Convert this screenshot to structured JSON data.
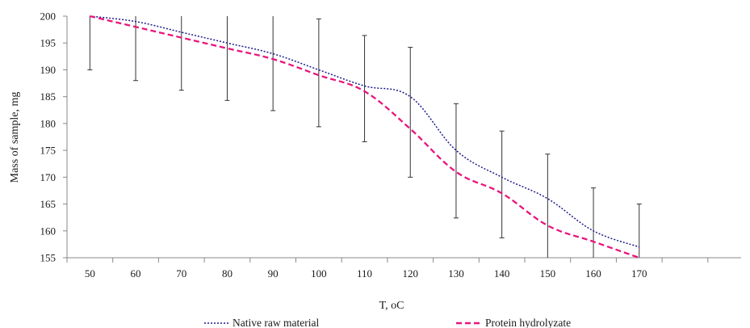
{
  "chart_data": {
    "type": "line",
    "xlabel": "T, oC",
    "ylabel": "Mass of sample, mg",
    "x": [
      50,
      60,
      70,
      80,
      90,
      100,
      110,
      120,
      130,
      140,
      150,
      160,
      170
    ],
    "x_tick_labels": [
      "50",
      "60",
      "70",
      "80",
      "90",
      "100",
      "110",
      "120",
      "130",
      "140",
      "150",
      "160",
      "170"
    ],
    "y_tick_labels": [
      "155",
      "160",
      "165",
      "170",
      "175",
      "180",
      "185",
      "190",
      "195",
      "200"
    ],
    "ylim": [
      155,
      200
    ],
    "grid": false,
    "legend_position": "bottom",
    "series": [
      {
        "name": "Native raw material",
        "color": "#1c1c8c",
        "line_style": "dotted",
        "values": [
          200,
          199,
          197,
          195,
          193,
          190,
          187,
          185,
          175,
          170,
          166,
          160,
          157
        ],
        "error": [
          10,
          11,
          10,
          10.5,
          10.5,
          9.8,
          9.6,
          9.2,
          8.6,
          8.5,
          8.3,
          7.9,
          7.8
        ]
      },
      {
        "name": "Protein hydrolyzate",
        "color": "#e8157c",
        "line_style": "dashed",
        "values": [
          200,
          198,
          196,
          194,
          192,
          189,
          186,
          179,
          171,
          167,
          161,
          158,
          155
        ],
        "error": [
          0,
          0,
          0,
          0,
          0,
          0,
          0,
          0,
          0,
          0,
          0,
          0,
          0
        ]
      }
    ],
    "error_bars": [
      {
        "x": 50,
        "low": 190,
        "high": 200
      },
      {
        "x": 60,
        "low": 188,
        "high": 200
      },
      {
        "x": 70,
        "low": 186.2,
        "high": 200
      },
      {
        "x": 80,
        "low": 184.3,
        "high": 200
      },
      {
        "x": 90,
        "low": 182.4,
        "high": 200
      },
      {
        "x": 100,
        "low": 179.4,
        "high": 199.5
      },
      {
        "x": 110,
        "low": 176.6,
        "high": 196.4
      },
      {
        "x": 120,
        "low": 170,
        "high": 194.2
      },
      {
        "x": 130,
        "low": 162.4,
        "high": 183.7
      },
      {
        "x": 140,
        "low": 158.7,
        "high": 178.6
      },
      {
        "x": 150,
        "low": 155,
        "high": 174.3
      },
      {
        "x": 160,
        "low": 155,
        "high": 168
      },
      {
        "x": 170,
        "low": 155,
        "high": 165
      }
    ]
  }
}
